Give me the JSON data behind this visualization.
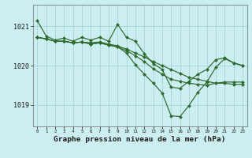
{
  "bg_color": "#cceef0",
  "grid_color": "#aad8dc",
  "line_color": "#2d6a2d",
  "marker_color": "#2d6a2d",
  "title": "Graphe pression niveau de la mer (hPa)",
  "xlim": [
    -0.5,
    23.5
  ],
  "ylim": [
    1018.45,
    1021.55
  ],
  "yticks": [
    1019,
    1020,
    1021
  ],
  "xticks": [
    0,
    1,
    2,
    3,
    4,
    5,
    6,
    7,
    8,
    9,
    10,
    11,
    12,
    13,
    14,
    15,
    16,
    17,
    18,
    19,
    20,
    21,
    22,
    23
  ],
  "series": [
    [
      1021.15,
      1020.75,
      1020.65,
      1020.7,
      1020.62,
      1020.72,
      1020.65,
      1020.72,
      1020.62,
      1021.05,
      1020.72,
      1020.62,
      1020.3,
      1020.05,
      1019.9,
      1019.45,
      1019.42,
      1019.6,
      1019.78,
      1019.9,
      1020.15,
      1020.2,
      1020.07,
      1020.0
    ],
    [
      1020.72,
      1020.68,
      1020.62,
      1020.62,
      1020.58,
      1020.6,
      1020.58,
      1020.6,
      1020.55,
      1020.5,
      1020.42,
      1020.32,
      1020.22,
      1020.1,
      1020.0,
      1019.9,
      1019.8,
      1019.7,
      1019.65,
      1019.6,
      1019.55,
      1019.55,
      1019.52,
      1019.52
    ],
    [
      1020.72,
      1020.68,
      1020.62,
      1020.62,
      1020.58,
      1020.6,
      1020.55,
      1020.58,
      1020.52,
      1020.48,
      1020.38,
      1020.25,
      1020.1,
      1019.92,
      1019.78,
      1019.65,
      1019.6,
      1019.55,
      1019.52,
      1019.5,
      1019.55,
      1019.58,
      1019.58,
      1019.58
    ],
    [
      1020.72,
      1020.68,
      1020.62,
      1020.62,
      1020.58,
      1020.6,
      1020.55,
      1020.58,
      1020.52,
      1020.48,
      1020.32,
      1020.02,
      1019.78,
      1019.55,
      1019.3,
      1018.72,
      1018.7,
      1018.98,
      1019.32,
      1019.58,
      1019.95,
      1020.18,
      1020.07,
      1020.0
    ]
  ]
}
